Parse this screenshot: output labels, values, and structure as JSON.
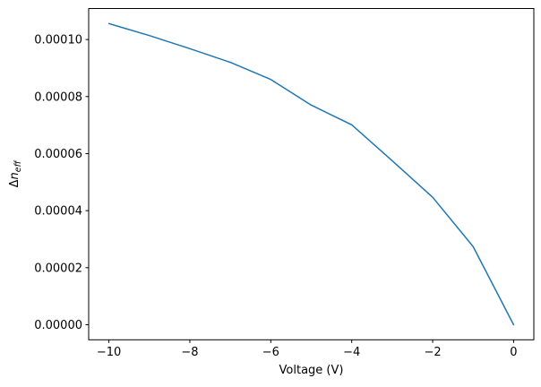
{
  "figure": {
    "background": "#ffffff",
    "text_color": "#000000",
    "spine_color": "#000000",
    "ylabel_parts": {
      "delta": "Δ",
      "n": "n",
      "sub": "eff"
    }
  },
  "chart_data": {
    "type": "line",
    "title": "",
    "xlabel": "Voltage (V)",
    "ylabel": "Δn_eff",
    "x": [
      -10,
      -9,
      -8,
      -7,
      -6,
      -5,
      -4,
      -3,
      -2,
      -1,
      0
    ],
    "y": [
      0.0001056,
      0.0001014,
      9.68e-05,
      9.2e-05,
      8.6e-05,
      7.7e-05,
      7.01e-05,
      5.75e-05,
      4.47e-05,
      2.74e-05,
      0.0
    ],
    "series": [
      {
        "name": "delta-n-eff-vs-voltage",
        "color": "#1f77b4",
        "line_width": 1.5,
        "marker": "none"
      }
    ],
    "xlim": [
      -10.5,
      0.5
    ],
    "ylim": [
      -5.28e-06,
      0.00011088
    ],
    "xticks": {
      "values": [
        -10,
        -8,
        -6,
        -4,
        -2,
        0
      ],
      "labels": [
        "−10",
        "−8",
        "−6",
        "−4",
        "−2",
        "0"
      ]
    },
    "yticks": {
      "values": [
        0.0,
        2e-05,
        4e-05,
        6e-05,
        8e-05,
        0.0001
      ],
      "labels": [
        "0.00000",
        "0.00002",
        "0.00004",
        "0.00006",
        "0.00008",
        "0.00010"
      ]
    },
    "grid": false,
    "legend": null
  }
}
